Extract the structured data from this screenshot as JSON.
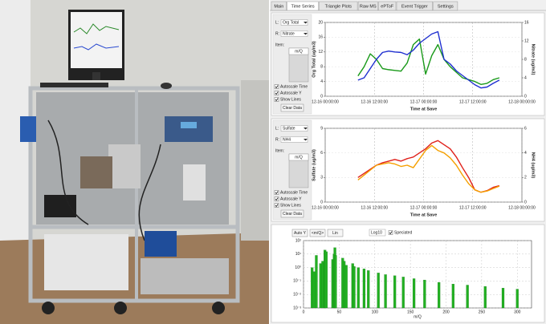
{
  "ui": {
    "tabs": [
      "Main",
      "Time Series",
      "Triangle Plots",
      "Raw MS",
      "ePToF",
      "Event Trigger",
      "Settings"
    ],
    "panels": [
      {
        "l_label": "L:",
        "r_label": "R:",
        "item_label": "Item:",
        "list_header": "m/Q",
        "checkboxes": [
          "Autoscale Time",
          "Autoscale Y",
          "Show Lines"
        ],
        "button": "Clear Data"
      },
      {
        "l_label": "L:",
        "r_label": "R:",
        "item_label": "Item:",
        "list_header": "m/Q",
        "checkboxes": [
          "Autoscale Time",
          "Autoscale Y",
          "Show Lines"
        ],
        "button": "Clear Data"
      }
    ],
    "spectrum_controls": {
      "buttons": [
        "Auto Y",
        "<m/Q>",
        "Lin"
      ],
      "select": "Log10",
      "checkbox": "Speciated"
    }
  },
  "chart_data": [
    {
      "type": "line",
      "xlabel": "Time at Save",
      "ylabel": "Org Total (ug/m3)",
      "y2label": "Nitrate (ug/m3)",
      "x": [
        8,
        9.5,
        11,
        12.5,
        14,
        15.5,
        17,
        18.5,
        20,
        21.5,
        23,
        24.5,
        26,
        27.5,
        29,
        30.5,
        32,
        33.5,
        35,
        36.5,
        38,
        39.5,
        41,
        42.5
      ],
      "xlim": [
        0,
        48
      ],
      "xticks": [
        {
          "value": 0,
          "label": "12-16 00:00:00"
        },
        {
          "value": 12,
          "label": "12-16 12:00:00"
        },
        {
          "value": 24,
          "label": "12-17 00:00:00"
        },
        {
          "value": 36,
          "label": "12-17 12:00:00"
        },
        {
          "value": 48,
          "label": "12-18 00:00:00"
        }
      ],
      "ylim": [
        0,
        20
      ],
      "yticks": [
        0,
        4,
        8,
        12,
        16,
        20
      ],
      "y2lim": [
        0,
        16
      ],
      "y2ticks": [
        0,
        4,
        8,
        12,
        16
      ],
      "grid": true,
      "series": [
        {
          "name": "Org Total",
          "color": "#1a9a1a",
          "values": [
            5.5,
            8,
            11.5,
            10,
            7.5,
            7.2,
            7,
            6.8,
            9,
            14,
            15.5,
            6,
            11,
            14,
            10,
            8,
            6.5,
            5,
            4.5,
            4,
            3.2,
            3.5,
            4.5,
            5
          ]
        },
        {
          "name": "Nitrate",
          "color": "#1f2fd0",
          "axis": "y2",
          "values": [
            3.5,
            4,
            6,
            8,
            9.5,
            9.8,
            9.6,
            9.5,
            9,
            10,
            11.5,
            12.5,
            13.5,
            14,
            8,
            7,
            5.5,
            4.5,
            3.5,
            2.5,
            1.8,
            2,
            2.8,
            3.5
          ]
        }
      ]
    },
    {
      "type": "line",
      "xlabel": "Time at Save",
      "ylabel": "Sulfate (ug/m3)",
      "y2label": "NH4 (ug/m3)",
      "x": [
        8,
        9.5,
        11,
        12.5,
        14,
        15.5,
        17,
        18.5,
        20,
        21.5,
        23,
        24.5,
        26,
        27.5,
        29,
        30.5,
        32,
        33.5,
        35,
        36.5,
        38,
        39.5,
        41,
        42.5
      ],
      "xlim": [
        0,
        48
      ],
      "xticks": [
        {
          "value": 0,
          "label": "12-16 00:00:00"
        },
        {
          "value": 12,
          "label": "12-16 12:00:00"
        },
        {
          "value": 24,
          "label": "12-17 00:00:00"
        },
        {
          "value": 36,
          "label": "12-17 12:00:00"
        },
        {
          "value": 48,
          "label": "12-18 00:00:00"
        }
      ],
      "ylim": [
        0,
        9
      ],
      "yticks": [
        0,
        3,
        6,
        9
      ],
      "y2lim": [
        0,
        6
      ],
      "y2ticks": [
        0,
        2,
        4,
        6
      ],
      "grid": true,
      "series": [
        {
          "name": "Sulfate",
          "color": "#e0201a",
          "values": [
            3,
            3.5,
            4,
            4.5,
            4.8,
            5,
            5.2,
            5,
            5.3,
            5.5,
            6,
            6.5,
            7.2,
            7.5,
            7,
            6.5,
            5.5,
            4.2,
            3,
            1.5,
            1.2,
            1.4,
            1.8,
            2
          ]
        },
        {
          "name": "NH4",
          "color": "#f5a000",
          "axis": "y2",
          "values": [
            1.8,
            2.2,
            2.6,
            3,
            3.1,
            3.2,
            3.1,
            2.9,
            3,
            2.8,
            3.5,
            4.2,
            4.6,
            4.2,
            4,
            3.6,
            3,
            2.2,
            1.5,
            1,
            0.8,
            0.9,
            1.1,
            1.3
          ]
        }
      ]
    },
    {
      "type": "bar",
      "xlabel": "m/Q",
      "x": [
        12,
        15,
        18,
        24,
        27,
        29,
        30,
        32,
        41,
        43,
        44,
        45,
        55,
        57,
        60,
        69,
        71,
        77,
        85,
        91,
        105,
        115,
        128,
        140,
        155,
        170,
        190,
        210,
        230,
        255,
        280,
        300
      ],
      "values": [
        1,
        0.5,
        8,
        2,
        3,
        2,
        20,
        15,
        4,
        10,
        30,
        8,
        5,
        3,
        1.5,
        2,
        1.2,
        1,
        0.8,
        0.6,
        0.4,
        0.3,
        0.25,
        0.2,
        0.15,
        0.12,
        0.08,
        0.06,
        0.05,
        0.04,
        0.03,
        0.025
      ],
      "color": "#22b022",
      "xlim": [
        0,
        320
      ],
      "xticks": [
        0,
        50,
        100,
        150,
        200,
        250,
        300
      ],
      "ylim": [
        0.001,
        100
      ],
      "log_y": true,
      "yticks": [
        {
          "value": 0.001,
          "label": "10⁻³"
        },
        {
          "value": 0.01,
          "label": "10⁻²"
        },
        {
          "value": 0.1,
          "label": "10⁻¹"
        },
        {
          "value": 1,
          "label": "10⁰"
        },
        {
          "value": 10,
          "label": "10¹"
        },
        {
          "value": 100,
          "label": "10²"
        }
      ],
      "grid": true
    }
  ]
}
